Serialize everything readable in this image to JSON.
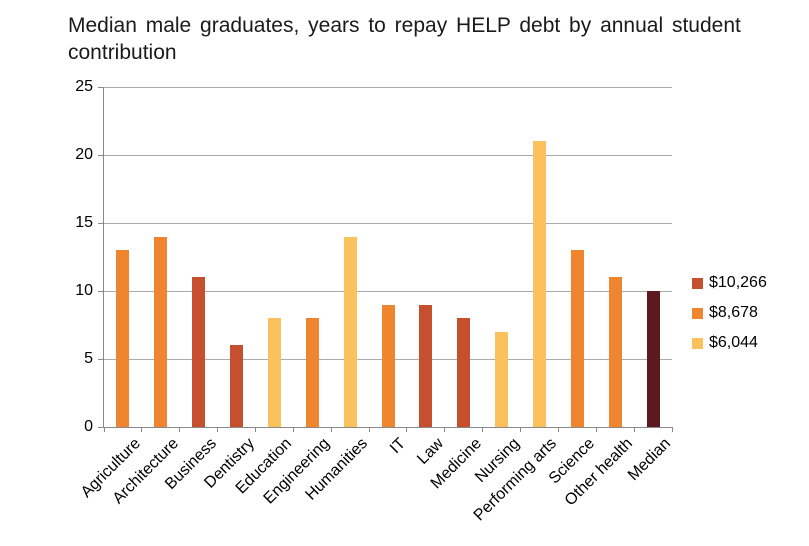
{
  "title": "Median male graduates, years to repay HELP debt by annual student contribution",
  "colors": {
    "gridline": "#ababab",
    "axis": "#898989",
    "band_10266": "#c6502d",
    "band_8678": "#f0852f",
    "band_6044": "#fbc15d",
    "median_bar": "#5c1a1e"
  },
  "legend": [
    {
      "label": "$10,266",
      "color": "#c6502d"
    },
    {
      "label": "$8,678",
      "color": "#f0852f"
    },
    {
      "label": "$6,044",
      "color": "#fbc15d"
    }
  ],
  "chart_data": {
    "type": "bar",
    "title": "Median male graduates, years to repay HELP debt by annual student contribution",
    "categories": [
      "Agriculture",
      "Architecture",
      "Business",
      "Dentistry",
      "Education",
      "Engineering",
      "Humanities",
      "IT",
      "Law",
      "Medicine",
      "Nursing",
      "Performing arts",
      "Science",
      "Other health",
      "Median"
    ],
    "values": [
      13,
      14,
      11,
      6,
      8,
      8,
      14,
      9,
      9,
      8,
      7,
      21,
      13,
      11,
      10
    ],
    "bands": [
      "$8,678",
      "$8,678",
      "$10,266",
      "$10,266",
      "$6,044",
      "$8,678",
      "$6,044",
      "$8,678",
      "$10,266",
      "$10,266",
      "$6,044",
      "$6,044",
      "$8,678",
      "$8,678",
      "Median"
    ],
    "band_colors": {
      "$10,266": "#c6502d",
      "$8,678": "#f0852f",
      "$6,044": "#fbc15d",
      "Median": "#5c1a1e"
    },
    "xlabel": "",
    "ylabel": "",
    "ylim": [
      0,
      25
    ],
    "yticks": [
      0,
      5,
      10,
      15,
      20,
      25
    ],
    "grid": true,
    "legend_position": "right",
    "legend_entries": [
      "$10,266",
      "$8,678",
      "$6,044"
    ]
  }
}
